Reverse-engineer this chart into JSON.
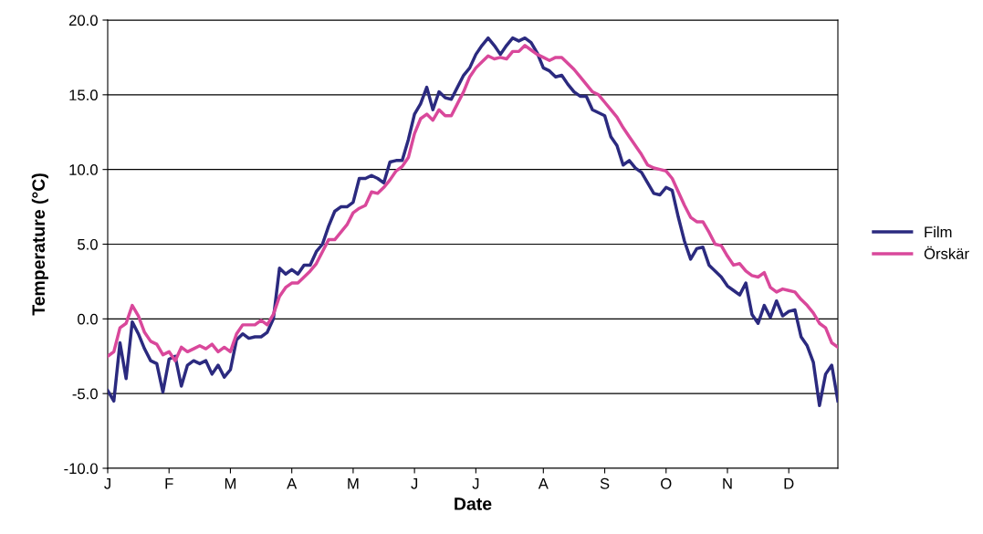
{
  "chart_data": {
    "type": "line",
    "xlabel": "Date",
    "ylabel": "Temperature (°C)",
    "categories": [
      "J",
      null,
      null,
      null,
      null,
      null,
      null,
      null,
      null,
      null,
      "F",
      null,
      null,
      null,
      null,
      null,
      null,
      null,
      null,
      null,
      "M",
      null,
      null,
      null,
      null,
      null,
      null,
      null,
      null,
      null,
      "A",
      null,
      null,
      null,
      null,
      null,
      null,
      null,
      null,
      null,
      "M",
      null,
      null,
      null,
      null,
      null,
      null,
      null,
      null,
      null,
      "J",
      null,
      null,
      null,
      null,
      null,
      null,
      null,
      null,
      null,
      "J",
      null,
      null,
      null,
      null,
      null,
      null,
      null,
      null,
      null,
      null,
      "A",
      null,
      null,
      null,
      null,
      null,
      null,
      null,
      null,
      null,
      "S",
      null,
      null,
      null,
      null,
      null,
      null,
      null,
      null,
      null,
      "O",
      null,
      null,
      null,
      null,
      null,
      null,
      null,
      null,
      null,
      "N",
      null,
      null,
      null,
      null,
      null,
      null,
      null,
      null,
      null,
      "D",
      null,
      null,
      null,
      null,
      null,
      null,
      null,
      null
    ],
    "ylim": [
      -10,
      20
    ],
    "yticks": [
      {
        "value": -10,
        "label": "-10.0"
      },
      {
        "value": -5,
        "label": "-5.0"
      },
      {
        "value": 0,
        "label": "0.0"
      },
      {
        "value": 5,
        "label": "5.0"
      },
      {
        "value": 10,
        "label": "10.0"
      },
      {
        "value": 15,
        "label": "15.0"
      },
      {
        "value": 20,
        "label": "20.0"
      }
    ],
    "grid": "y",
    "legend": "right",
    "marker": "none",
    "line_style": "solid",
    "series": [
      {
        "name": "Film",
        "color": "#2b2a7f",
        "values": [
          -4.8,
          -5.5,
          -1.6,
          -4.0,
          -0.2,
          -1.0,
          -2.0,
          -2.8,
          -3.0,
          -4.9,
          -2.7,
          -2.5,
          -4.5,
          -3.1,
          -2.8,
          -3.0,
          -2.8,
          -3.7,
          -3.1,
          -3.9,
          -3.4,
          -1.4,
          -1.0,
          -1.3,
          -1.2,
          -1.2,
          -0.9,
          0.0,
          3.4,
          3.0,
          3.3,
          3.0,
          3.6,
          3.6,
          4.5,
          5.0,
          6.2,
          7.2,
          7.5,
          7.5,
          7.8,
          9.4,
          9.4,
          9.6,
          9.4,
          9.1,
          10.5,
          10.6,
          10.6,
          12.0,
          13.7,
          14.4,
          15.5,
          14.0,
          15.2,
          14.8,
          14.7,
          15.5,
          16.3,
          16.8,
          17.7,
          18.3,
          18.8,
          18.3,
          17.7,
          18.3,
          18.8,
          18.6,
          18.8,
          18.5,
          17.8,
          16.8,
          16.6,
          16.2,
          16.3,
          15.7,
          15.2,
          14.9,
          14.9,
          14.0,
          13.8,
          13.6,
          12.2,
          11.6,
          10.3,
          10.6,
          10.1,
          9.8,
          9.1,
          8.4,
          8.3,
          8.8,
          8.6,
          6.8,
          5.2,
          4.0,
          4.7,
          4.8,
          3.6,
          3.2,
          2.8,
          2.2,
          1.9,
          1.6,
          2.4,
          0.3,
          -0.3,
          0.9,
          0.1,
          1.2,
          0.2,
          0.5,
          0.6,
          -1.2,
          -1.8,
          -2.9,
          -5.8,
          -3.7,
          -3.1,
          -5.5
        ]
      },
      {
        "name": "Örskär",
        "color": "#d9489b",
        "values": [
          -2.5,
          -2.2,
          -0.6,
          -0.3,
          0.9,
          0.2,
          -0.9,
          -1.5,
          -1.7,
          -2.4,
          -2.2,
          -2.8,
          -1.9,
          -2.2,
          -2.0,
          -1.8,
          -2.0,
          -1.7,
          -2.2,
          -1.9,
          -2.2,
          -1.0,
          -0.4,
          -0.4,
          -0.4,
          -0.1,
          -0.4,
          0.3,
          1.5,
          2.1,
          2.4,
          2.4,
          2.8,
          3.2,
          3.7,
          4.5,
          5.3,
          5.3,
          5.8,
          6.3,
          7.1,
          7.4,
          7.6,
          8.5,
          8.4,
          8.8,
          9.3,
          9.9,
          10.2,
          10.8,
          12.4,
          13.4,
          13.7,
          13.3,
          14.0,
          13.6,
          13.6,
          14.4,
          15.2,
          16.2,
          16.8,
          17.2,
          17.6,
          17.4,
          17.5,
          17.4,
          17.9,
          17.9,
          18.3,
          18.0,
          17.7,
          17.5,
          17.3,
          17.5,
          17.5,
          17.1,
          16.7,
          16.2,
          15.7,
          15.2,
          15.0,
          14.5,
          14.0,
          13.5,
          12.8,
          12.2,
          11.6,
          11.0,
          10.3,
          10.1,
          10.0,
          9.9,
          9.4,
          8.5,
          7.6,
          6.8,
          6.5,
          6.5,
          5.8,
          5.0,
          4.9,
          4.2,
          3.6,
          3.7,
          3.2,
          2.9,
          2.8,
          3.1,
          2.1,
          1.8,
          2.0,
          1.9,
          1.8,
          1.3,
          0.9,
          0.4,
          -0.3,
          -0.6,
          -1.6,
          -1.9
        ]
      }
    ]
  }
}
